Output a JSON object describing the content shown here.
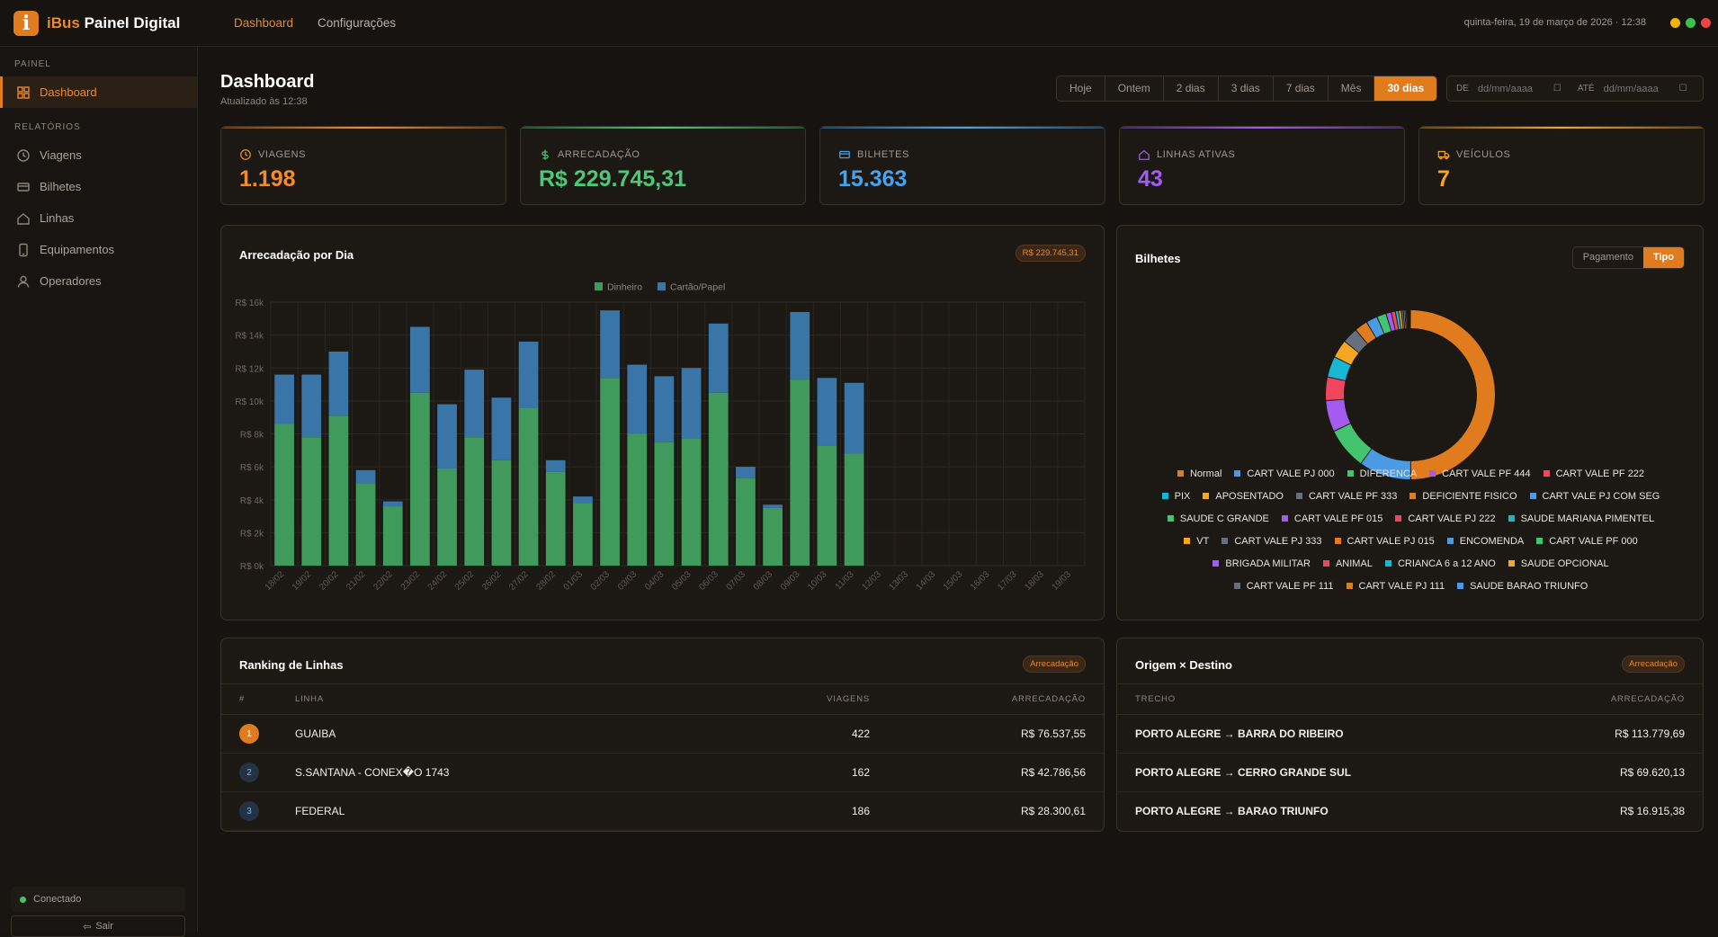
{
  "app": {
    "name_left": "iBus",
    "name_right": "Painel Digital",
    "logo_letter": "i"
  },
  "topnav": [
    {
      "label": "Dashboard",
      "active": true
    },
    {
      "label": "Configurações",
      "active": false
    }
  ],
  "clock": "quinta-feira, 19 de março de 2026 · 12:38",
  "window_dots": [
    "#f5b400",
    "#3cc24a",
    "#ef4444"
  ],
  "sidebar": {
    "section_panel": "PAINEL",
    "dashboard": "Dashboard",
    "section_reports": "RELATÓRIOS",
    "items": [
      {
        "label": "Viagens",
        "icon": "clock-icon"
      },
      {
        "label": "Bilhetes",
        "icon": "ticket-icon"
      },
      {
        "label": "Linhas",
        "icon": "home-icon"
      },
      {
        "label": "Equipamentos",
        "icon": "device-icon"
      },
      {
        "label": "Operadores",
        "icon": "user-icon"
      }
    ],
    "status": "Conectado",
    "logout": "Sair"
  },
  "page": {
    "title": "Dashboard",
    "updated": "Atualizado às 12:38"
  },
  "filters": [
    "Hoje",
    "Ontem",
    "2 dias",
    "3 dias",
    "7 dias",
    "Mês",
    "30 dias"
  ],
  "active_filter": "30 dias",
  "daterange": {
    "de": "DE",
    "ate": "ATÉ",
    "placeholder": "dd/mm/aaaa"
  },
  "kpis": [
    {
      "label": "VIAGENS",
      "value": "1.198",
      "color": "#f08c2e",
      "icon": "clock-icon"
    },
    {
      "label": "ARRECADAÇÃO",
      "value": "R$ 229.745,31",
      "color": "#4ec777",
      "icon": "dollar-icon"
    },
    {
      "label": "BILHETES",
      "value": "15.363",
      "color": "#4aa3e8",
      "icon": "ticket-icon"
    },
    {
      "label": "LINHAS ATIVAS",
      "value": "43",
      "color": "#a35cf0",
      "icon": "home-icon"
    },
    {
      "label": "VEÍCULOS",
      "value": "7",
      "color": "#f5a623",
      "icon": "truck-icon"
    }
  ],
  "revenue_card": {
    "title": "Arrecadação por Dia",
    "badge": "R$ 229.745,31"
  },
  "tickets_card": {
    "title": "Bilhetes",
    "toggle": [
      "Pagamento",
      "Tipo"
    ],
    "active_toggle": "Tipo"
  },
  "ranking": {
    "title": "Ranking de Linhas",
    "badge": "Arrecadação",
    "headers": [
      "#",
      "LINHA",
      "VIAGENS",
      "ARRECADAÇÃO"
    ],
    "rows": [
      {
        "rank": "1",
        "line": "GUAIBA",
        "trips": "422",
        "revenue": "R$ 76.537,55"
      },
      {
        "rank": "2",
        "line": "S.SANTANA - CONEX�O 1743",
        "trips": "162",
        "revenue": "R$ 42.786,56"
      },
      {
        "rank": "3",
        "line": "FEDERAL",
        "trips": "186",
        "revenue": "R$ 28.300,61"
      }
    ]
  },
  "od": {
    "title": "Origem × Destino",
    "badge": "Arrecadação",
    "headers": [
      "TRECHO",
      "ARRECADAÇÃO"
    ],
    "rows": [
      {
        "route": "PORTO ALEGRE → BARRA DO RIBEIRO",
        "revenue": "R$ 113.779,69"
      },
      {
        "route": "PORTO ALEGRE → CERRO GRANDE SUL",
        "revenue": "R$ 69.620,13"
      },
      {
        "route": "PORTO ALEGRE → BARAO TRIUNFO",
        "revenue": "R$ 16.915,38"
      }
    ]
  },
  "chart_data": [
    {
      "type": "bar",
      "stacked": true,
      "categories": [
        "18/02",
        "19/02",
        "20/02",
        "21/02",
        "22/02",
        "23/02",
        "24/02",
        "25/02",
        "26/02",
        "27/02",
        "28/02",
        "01/03",
        "02/03",
        "03/03",
        "04/03",
        "05/03",
        "06/03",
        "07/03",
        "08/03",
        "09/03",
        "10/03",
        "11/03",
        "12/03",
        "13/03",
        "14/03",
        "15/03",
        "16/03",
        "17/03",
        "18/03",
        "19/03"
      ],
      "series": [
        {
          "name": "Dinheiro",
          "color": "#3f9a5c",
          "values": [
            8600,
            7800,
            9100,
            5000,
            3600,
            10500,
            5900,
            7800,
            6400,
            9600,
            5700,
            3800,
            11400,
            8000,
            7500,
            7700,
            10500,
            5300,
            3500,
            11300,
            7300,
            6800,
            0,
            0,
            0,
            0,
            0,
            0,
            0,
            0
          ]
        },
        {
          "name": "Cartão/Papel",
          "color": "#3a75a8",
          "values": [
            3000,
            3800,
            3900,
            800,
            300,
            4000,
            3900,
            4100,
            3800,
            4000,
            700,
            400,
            4100,
            4200,
            4000,
            4300,
            4200,
            700,
            200,
            4100,
            4100,
            4300,
            0,
            0,
            0,
            0,
            0,
            0,
            0,
            0
          ]
        }
      ],
      "ylim": [
        0,
        16000
      ],
      "yticks": [
        "R$ 0k",
        "R$ 2k",
        "R$ 4k",
        "R$ 6k",
        "R$ 8k",
        "R$ 10k",
        "R$ 12k",
        "R$ 14k",
        "R$ 16k"
      ],
      "legend": "top",
      "grid": true
    },
    {
      "type": "pie",
      "donut": true,
      "labels": [
        "Normal",
        "CART VALE PJ 000",
        "DIFERENCA",
        "CART VALE PF 444",
        "CART VALE PF 222",
        "PIX",
        "APOSENTADO",
        "CART VALE PF 333",
        "DEFICIENTE FISICO",
        "CART VALE PJ COM SEG",
        "SAUDE C GRANDE",
        "CART VALE PF 015",
        "CART VALE PJ 222",
        "SAUDE MARIANA PIMENTEL",
        "VT",
        "CART VALE PJ 333",
        "CART VALE PJ 015",
        "ENCOMENDA",
        "CART VALE PF 000",
        "BRIGADA MILITAR",
        "ANIMAL",
        "CRIANCA 6 a 12 ANO",
        "SAUDE OPCIONAL",
        "CART VALE PF 111",
        "CART VALE PJ 111",
        "SAUDE BARAO TRIUNFO"
      ],
      "colors": [
        "#e07b1e",
        "#4a9be3",
        "#43c46f",
        "#a45cf0",
        "#f0455c",
        "#19b6d4",
        "#f5a623",
        "#66707d",
        "#e07b1e",
        "#4a9be3",
        "#43c46f",
        "#a45cf0",
        "#f0455c",
        "#19b6d4",
        "#f5a623",
        "#66707d",
        "#e07b1e",
        "#4a9be3",
        "#43c46f",
        "#a45cf0",
        "#f0455c",
        "#19b6d4",
        "#f5a623",
        "#66707d",
        "#e07b1e",
        "#4a9be3"
      ],
      "values": [
        50,
        10,
        8,
        6,
        4.5,
        4,
        3.5,
        3,
        2.5,
        2.2,
        1.8,
        1,
        0.8,
        0.6,
        0.5,
        0.4,
        0.3,
        0.25,
        0.2,
        0.15,
        0.12,
        0.1,
        0.08,
        0.06,
        0.05,
        0.04
      ],
      "legend": "bottom"
    }
  ]
}
